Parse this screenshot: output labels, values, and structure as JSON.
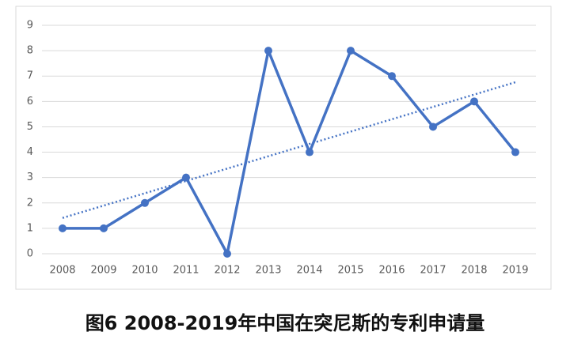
{
  "chart_data": {
    "type": "line",
    "title": "图6  2008-2019年中国在突尼斯的专利申请量",
    "categories": [
      "2008",
      "2009",
      "2010",
      "2011",
      "2012",
      "2013",
      "2014",
      "2015",
      "2016",
      "2017",
      "2018",
      "2019"
    ],
    "series": [
      {
        "color": "#4472c4",
        "values": [
          1,
          1,
          2,
          3,
          0,
          8,
          4,
          8,
          7,
          5,
          6,
          4
        ]
      }
    ],
    "trendline": "linear",
    "ylim": [
      0,
      9
    ],
    "yticks": [
      0,
      1,
      2,
      3,
      4,
      5,
      6,
      7,
      8,
      9
    ],
    "grid": true
  }
}
